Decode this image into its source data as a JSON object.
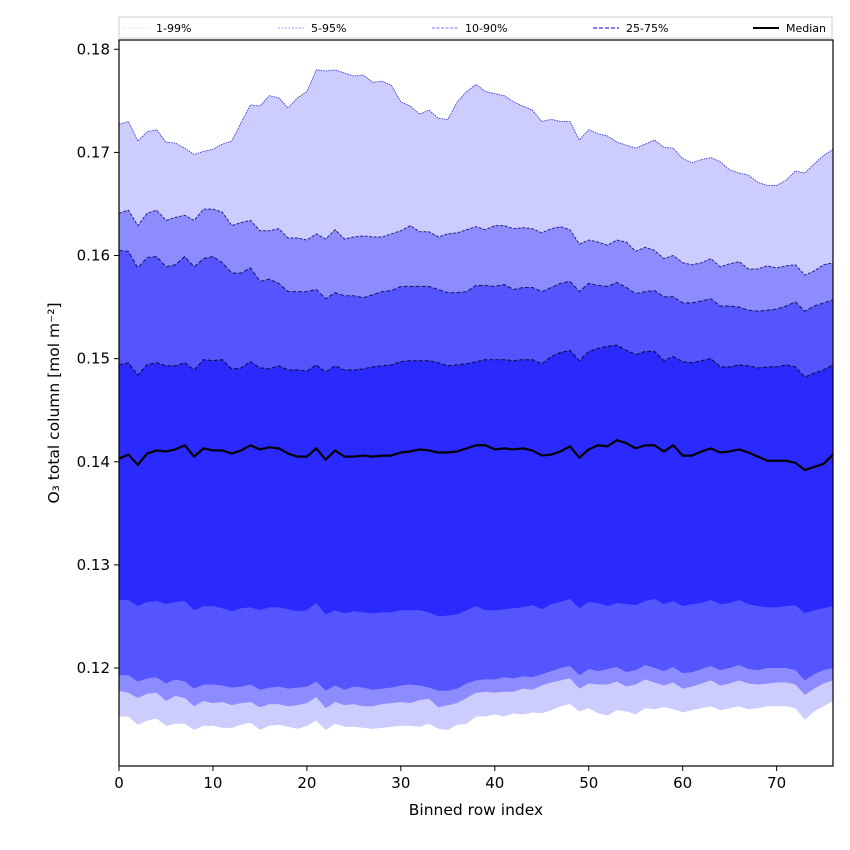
{
  "chart_data": {
    "type": "area",
    "title": "",
    "xlabel": "Binned row index",
    "ylabel": "O₃ total column [mol m⁻²]",
    "xlim": [
      0,
      76
    ],
    "ylim": [
      0.1105,
      0.1809
    ],
    "xticks": [
      0,
      10,
      20,
      30,
      40,
      50,
      60,
      70
    ],
    "xtick_labels": [
      "0",
      "10",
      "20",
      "30",
      "40",
      "50",
      "60",
      "70"
    ],
    "yticks": [
      0.12,
      0.13,
      0.14,
      0.15,
      0.16,
      0.17,
      0.18
    ],
    "ytick_labels": [
      "0.12",
      "0.13",
      "0.14",
      "0.15",
      "0.16",
      "0.17",
      "0.18"
    ],
    "grid": false,
    "legend_position": "top",
    "legend": [
      {
        "label": "1-99%",
        "color": "#ccccff",
        "style": "dotted"
      },
      {
        "label": "5-95%",
        "color": "#8c8cff",
        "style": "dashed"
      },
      {
        "label": "10-90%",
        "color": "#5555ff",
        "style": "dashed"
      },
      {
        "label": "25-75%",
        "color": "#2a2aff",
        "style": "dashed"
      },
      {
        "label": "Median",
        "color": "#000000",
        "style": "solid"
      }
    ],
    "colors": {
      "band_1_99": "#ccccff",
      "band_5_95": "#8c8cff",
      "band_10_90": "#5555ff",
      "band_25_75": "#2a2aff",
      "edge": "#1a1a80",
      "median": "#000000"
    },
    "x_start": 0,
    "x_step": 1,
    "series": [
      {
        "name": "p99",
        "values": [
          0.1727,
          0.173,
          0.1711,
          0.172,
          0.1722,
          0.171,
          0.1709,
          0.1704,
          0.1698,
          0.1701,
          0.1703,
          0.1708,
          0.1711,
          0.1729,
          0.1746,
          0.1745,
          0.1755,
          0.1753,
          0.1743,
          0.1753,
          0.1759,
          0.178,
          0.1779,
          0.178,
          0.1777,
          0.1774,
          0.1775,
          0.1768,
          0.1769,
          0.1765,
          0.1749,
          0.1745,
          0.1737,
          0.1741,
          0.1733,
          0.1732,
          0.1749,
          0.1759,
          0.1766,
          0.1759,
          0.1757,
          0.1755,
          0.1749,
          0.1745,
          0.1741,
          0.173,
          0.1732,
          0.173,
          0.173,
          0.1712,
          0.1722,
          0.1718,
          0.1716,
          0.171,
          0.1707,
          0.1704,
          0.1708,
          0.1712,
          0.1705,
          0.1704,
          0.1694,
          0.169,
          0.1693,
          0.1695,
          0.1691,
          0.1683,
          0.168,
          0.1678,
          0.1671,
          0.1668,
          0.1668,
          0.1673,
          0.1682,
          0.168,
          0.1689,
          0.1697,
          0.1703
        ]
      },
      {
        "name": "p95",
        "values": [
          0.1641,
          0.1644,
          0.1629,
          0.1641,
          0.1644,
          0.1634,
          0.1637,
          0.1639,
          0.1634,
          0.1645,
          0.1645,
          0.1642,
          0.1629,
          0.1632,
          0.1634,
          0.1624,
          0.1624,
          0.1626,
          0.1617,
          0.1617,
          0.1615,
          0.1621,
          0.1616,
          0.1625,
          0.1616,
          0.1618,
          0.1619,
          0.1618,
          0.1618,
          0.1621,
          0.1624,
          0.1629,
          0.1623,
          0.1623,
          0.1618,
          0.1621,
          0.1622,
          0.1625,
          0.1628,
          0.1625,
          0.1629,
          0.1629,
          0.1626,
          0.1627,
          0.1626,
          0.1622,
          0.1626,
          0.1628,
          0.1625,
          0.1611,
          0.1615,
          0.1613,
          0.161,
          0.1615,
          0.1613,
          0.1604,
          0.1608,
          0.1605,
          0.1597,
          0.16,
          0.1593,
          0.1591,
          0.1593,
          0.1597,
          0.1589,
          0.1592,
          0.1594,
          0.1587,
          0.1587,
          0.159,
          0.1588,
          0.159,
          0.1591,
          0.1581,
          0.1585,
          0.1591,
          0.1593
        ]
      },
      {
        "name": "p90",
        "values": [
          0.1605,
          0.1604,
          0.1588,
          0.1598,
          0.1599,
          0.1589,
          0.1591,
          0.1599,
          0.1589,
          0.1597,
          0.1599,
          0.1593,
          0.1583,
          0.1583,
          0.1588,
          0.1575,
          0.1577,
          0.1573,
          0.1565,
          0.1565,
          0.1565,
          0.1567,
          0.1558,
          0.1564,
          0.1561,
          0.1561,
          0.1559,
          0.1562,
          0.1565,
          0.1566,
          0.157,
          0.157,
          0.157,
          0.157,
          0.1567,
          0.1564,
          0.1564,
          0.1565,
          0.1571,
          0.1571,
          0.157,
          0.1572,
          0.1567,
          0.1569,
          0.1569,
          0.1565,
          0.1569,
          0.1573,
          0.1575,
          0.1565,
          0.1573,
          0.1571,
          0.157,
          0.1574,
          0.1569,
          0.1563,
          0.1565,
          0.1566,
          0.156,
          0.156,
          0.1554,
          0.1554,
          0.1556,
          0.1558,
          0.1551,
          0.1551,
          0.155,
          0.1547,
          0.1546,
          0.1547,
          0.1548,
          0.1551,
          0.1555,
          0.1546,
          0.1551,
          0.1554,
          0.1557
        ]
      },
      {
        "name": "p75",
        "values": [
          0.1494,
          0.1496,
          0.1484,
          0.1494,
          0.1496,
          0.1493,
          0.1493,
          0.1496,
          0.1489,
          0.1499,
          0.1498,
          0.1499,
          0.149,
          0.1491,
          0.1497,
          0.1491,
          0.149,
          0.1493,
          0.1489,
          0.1489,
          0.1488,
          0.1494,
          0.1487,
          0.1493,
          0.1489,
          0.1489,
          0.149,
          0.1492,
          0.1493,
          0.1494,
          0.1497,
          0.1498,
          0.1498,
          0.1498,
          0.1496,
          0.1493,
          0.1494,
          0.1495,
          0.1497,
          0.1499,
          0.1499,
          0.1499,
          0.1498,
          0.1499,
          0.1499,
          0.1495,
          0.1502,
          0.1506,
          0.1508,
          0.1498,
          0.1507,
          0.151,
          0.1512,
          0.1513,
          0.1508,
          0.1504,
          0.1507,
          0.1507,
          0.1498,
          0.1502,
          0.1497,
          0.1496,
          0.1498,
          0.15,
          0.1492,
          0.1492,
          0.1494,
          0.1493,
          0.1491,
          0.1492,
          0.1492,
          0.1494,
          0.1492,
          0.1482,
          0.1486,
          0.1489,
          0.1494
        ]
      },
      {
        "name": "median",
        "values": [
          0.1403,
          0.1407,
          0.1397,
          0.1408,
          0.1411,
          0.141,
          0.1412,
          0.1416,
          0.1405,
          0.1413,
          0.1411,
          0.1411,
          0.1408,
          0.1411,
          0.1416,
          0.1412,
          0.1414,
          0.1413,
          0.1408,
          0.1405,
          0.1405,
          0.1413,
          0.1402,
          0.1411,
          0.1405,
          0.1405,
          0.1406,
          0.1405,
          0.1406,
          0.1406,
          0.1409,
          0.141,
          0.1412,
          0.1411,
          0.1409,
          0.1409,
          0.141,
          0.1413,
          0.1416,
          0.1416,
          0.1412,
          0.1413,
          0.1412,
          0.1413,
          0.1411,
          0.1406,
          0.1407,
          0.141,
          0.1415,
          0.1404,
          0.1412,
          0.1416,
          0.1415,
          0.1421,
          0.1418,
          0.1413,
          0.1416,
          0.1416,
          0.141,
          0.1416,
          0.1406,
          0.1406,
          0.141,
          0.1413,
          0.1409,
          0.141,
          0.1412,
          0.1409,
          0.1405,
          0.1401,
          0.1401,
          0.1401,
          0.1399,
          0.1392,
          0.1395,
          0.1398,
          0.1407
        ]
      },
      {
        "name": "p25",
        "values": [
          0.1266,
          0.1266,
          0.126,
          0.1264,
          0.1265,
          0.1262,
          0.1264,
          0.1265,
          0.1256,
          0.126,
          0.126,
          0.1258,
          0.1255,
          0.1258,
          0.1259,
          0.1256,
          0.1259,
          0.1259,
          0.1257,
          0.1255,
          0.1256,
          0.1263,
          0.1252,
          0.1256,
          0.1253,
          0.1255,
          0.1254,
          0.1253,
          0.1254,
          0.1254,
          0.1256,
          0.1256,
          0.1256,
          0.1254,
          0.125,
          0.1251,
          0.1252,
          0.1256,
          0.126,
          0.1256,
          0.1256,
          0.1257,
          0.1258,
          0.1259,
          0.1261,
          0.1257,
          0.1262,
          0.1264,
          0.1267,
          0.1258,
          0.1264,
          0.1263,
          0.126,
          0.1263,
          0.1262,
          0.1261,
          0.1265,
          0.1267,
          0.1262,
          0.1265,
          0.126,
          0.1262,
          0.1263,
          0.1266,
          0.1262,
          0.1263,
          0.1266,
          0.1262,
          0.126,
          0.1259,
          0.1259,
          0.126,
          0.1261,
          0.1253,
          0.1256,
          0.1258,
          0.126
        ]
      },
      {
        "name": "p10",
        "values": [
          0.1193,
          0.1193,
          0.1187,
          0.119,
          0.1191,
          0.1185,
          0.1189,
          0.1187,
          0.118,
          0.1184,
          0.1184,
          0.1183,
          0.1181,
          0.1182,
          0.1184,
          0.1179,
          0.1181,
          0.1182,
          0.118,
          0.1181,
          0.1182,
          0.1187,
          0.1178,
          0.1183,
          0.1179,
          0.1182,
          0.1181,
          0.1179,
          0.118,
          0.1181,
          0.1183,
          0.1184,
          0.1183,
          0.1181,
          0.1178,
          0.1178,
          0.118,
          0.1185,
          0.1188,
          0.1189,
          0.1189,
          0.1191,
          0.119,
          0.1192,
          0.1191,
          0.1194,
          0.1197,
          0.12,
          0.1202,
          0.1193,
          0.1199,
          0.1197,
          0.1199,
          0.1201,
          0.1196,
          0.1198,
          0.1203,
          0.12,
          0.1197,
          0.1201,
          0.1195,
          0.1196,
          0.1199,
          0.1202,
          0.1198,
          0.12,
          0.1203,
          0.1199,
          0.1198,
          0.12,
          0.12,
          0.12,
          0.1198,
          0.1188,
          0.1194,
          0.1198,
          0.12
        ]
      },
      {
        "name": "p5",
        "values": [
          0.1178,
          0.1176,
          0.1171,
          0.1175,
          0.1176,
          0.1168,
          0.1173,
          0.1171,
          0.1163,
          0.1168,
          0.1166,
          0.1167,
          0.1164,
          0.1166,
          0.1167,
          0.1162,
          0.1165,
          0.1165,
          0.1163,
          0.1164,
          0.1166,
          0.1172,
          0.1161,
          0.1167,
          0.1164,
          0.1165,
          0.1163,
          0.1163,
          0.1165,
          0.1166,
          0.1167,
          0.1166,
          0.1169,
          0.117,
          0.1162,
          0.1164,
          0.1166,
          0.1171,
          0.1176,
          0.1177,
          0.1176,
          0.1177,
          0.1177,
          0.118,
          0.1179,
          0.1183,
          0.1186,
          0.1188,
          0.119,
          0.118,
          0.1185,
          0.1184,
          0.1184,
          0.1187,
          0.1182,
          0.1184,
          0.1189,
          0.1186,
          0.1183,
          0.1186,
          0.118,
          0.1182,
          0.1185,
          0.1188,
          0.1183,
          0.1185,
          0.1188,
          0.1185,
          0.1184,
          0.1185,
          0.1186,
          0.1186,
          0.1184,
          0.1174,
          0.118,
          0.1185,
          0.1188
        ]
      },
      {
        "name": "p1",
        "values": [
          0.1153,
          0.1153,
          0.1145,
          0.1149,
          0.1151,
          0.1144,
          0.1146,
          0.1146,
          0.114,
          0.1144,
          0.1144,
          0.1142,
          0.1142,
          0.1145,
          0.1147,
          0.114,
          0.1144,
          0.1145,
          0.1143,
          0.1141,
          0.1144,
          0.1149,
          0.114,
          0.1146,
          0.1143,
          0.1143,
          0.1142,
          0.1141,
          0.1142,
          0.1143,
          0.1144,
          0.1144,
          0.1143,
          0.1146,
          0.1141,
          0.114,
          0.1145,
          0.1146,
          0.1153,
          0.1153,
          0.1155,
          0.1153,
          0.1156,
          0.1155,
          0.1157,
          0.1156,
          0.1159,
          0.1163,
          0.1165,
          0.1158,
          0.1161,
          0.1156,
          0.1154,
          0.1159,
          0.1158,
          0.1155,
          0.1161,
          0.116,
          0.1162,
          0.116,
          0.1157,
          0.1159,
          0.1161,
          0.1163,
          0.1159,
          0.1161,
          0.1163,
          0.116,
          0.1161,
          0.1163,
          0.1163,
          0.1163,
          0.1161,
          0.115,
          0.1158,
          0.1163,
          0.1168
        ]
      }
    ]
  }
}
